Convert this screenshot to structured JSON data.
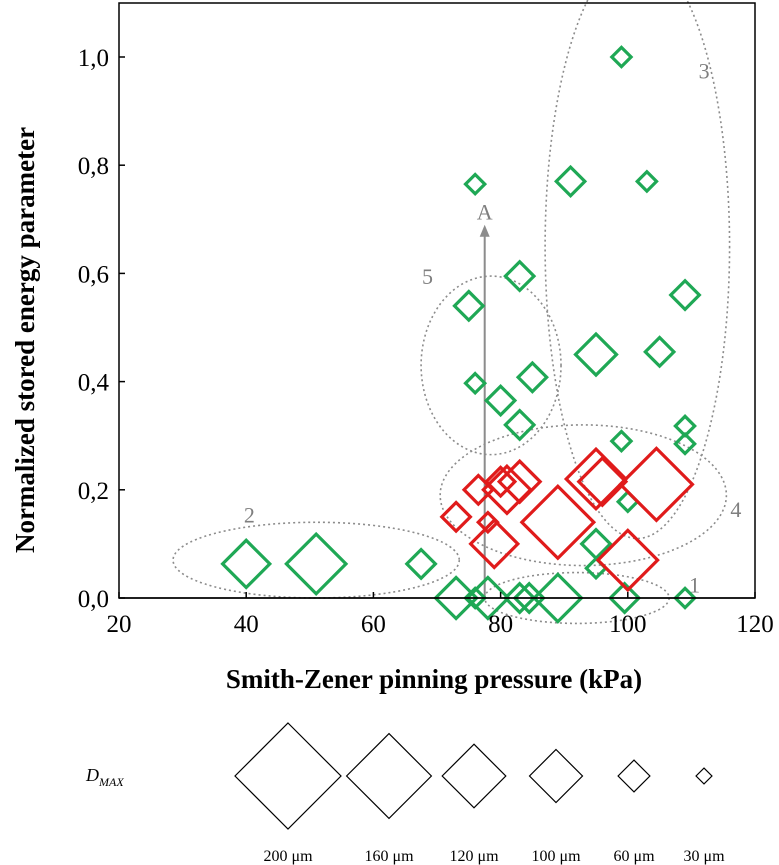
{
  "chart_data": {
    "type": "scatter",
    "xlabel": "Smith-Zener pinning pressure (kPa)",
    "ylabel": "Normalized stored energy parameter",
    "xlim": [
      20,
      120
    ],
    "ylim": [
      0,
      1.1
    ],
    "x_ticks": [
      20,
      40,
      60,
      80,
      100,
      120
    ],
    "x_tick_labels": [
      "20",
      "40",
      "60",
      "80",
      "100",
      "120"
    ],
    "y_ticks": [
      0,
      0.2,
      0.4,
      0.6,
      0.8,
      1.0
    ],
    "y_tick_labels": [
      "0,0",
      "0,2",
      "0,4",
      "0,6",
      "0,8",
      "1,0"
    ],
    "grid": false,
    "marker": "diamond",
    "marker_size_meaning": "D_MAX (μm)",
    "series": [
      {
        "color": "#1fa855",
        "points": [
          {
            "x": 99,
            "y": 1.0,
            "dmax": 30
          },
          {
            "x": 76,
            "y": 0.765,
            "dmax": 30
          },
          {
            "x": 91,
            "y": 0.77,
            "dmax": 60
          },
          {
            "x": 103,
            "y": 0.77,
            "dmax": 30
          },
          {
            "x": 83,
            "y": 0.595,
            "dmax": 60
          },
          {
            "x": 75,
            "y": 0.54,
            "dmax": 60
          },
          {
            "x": 109,
            "y": 0.56,
            "dmax": 60
          },
          {
            "x": 95,
            "y": 0.45,
            "dmax": 100
          },
          {
            "x": 105,
            "y": 0.455,
            "dmax": 60
          },
          {
            "x": 76,
            "y": 0.397,
            "dmax": 30
          },
          {
            "x": 85,
            "y": 0.408,
            "dmax": 60
          },
          {
            "x": 80,
            "y": 0.365,
            "dmax": 60
          },
          {
            "x": 83,
            "y": 0.32,
            "dmax": 60
          },
          {
            "x": 109,
            "y": 0.318,
            "dmax": 30
          },
          {
            "x": 99,
            "y": 0.29,
            "dmax": 30
          },
          {
            "x": 109,
            "y": 0.285,
            "dmax": 30
          },
          {
            "x": 100,
            "y": 0.178,
            "dmax": 30
          },
          {
            "x": 95,
            "y": 0.1,
            "dmax": 60
          },
          {
            "x": 95,
            "y": 0.055,
            "dmax": 30
          },
          {
            "x": 40,
            "y": 0.063,
            "dmax": 120
          },
          {
            "x": 51,
            "y": 0.063,
            "dmax": 160
          },
          {
            "x": 67.5,
            "y": 0.063,
            "dmax": 60
          },
          {
            "x": 73,
            "y": 0.0,
            "dmax": 100
          },
          {
            "x": 76,
            "y": 0.0,
            "dmax": 30
          },
          {
            "x": 78,
            "y": 0.0,
            "dmax": 100
          },
          {
            "x": 83,
            "y": 0.0,
            "dmax": 60
          },
          {
            "x": 84.5,
            "y": 0.0,
            "dmax": 60
          },
          {
            "x": 89,
            "y": 0.0,
            "dmax": 120
          },
          {
            "x": 99.5,
            "y": 0.0,
            "dmax": 60
          },
          {
            "x": 109,
            "y": 0.0,
            "dmax": 30
          }
        ]
      },
      {
        "color": "#e01b1b",
        "points": [
          {
            "x": 104.5,
            "y": 0.21,
            "dmax": 200
          },
          {
            "x": 96,
            "y": 0.215,
            "dmax": 120
          },
          {
            "x": 89,
            "y": 0.14,
            "dmax": 200
          },
          {
            "x": 95,
            "y": 0.22,
            "dmax": 160
          },
          {
            "x": 81,
            "y": 0.2,
            "dmax": 120
          },
          {
            "x": 83,
            "y": 0.215,
            "dmax": 100
          },
          {
            "x": 80,
            "y": 0.215,
            "dmax": 60
          },
          {
            "x": 76.5,
            "y": 0.2,
            "dmax": 60
          },
          {
            "x": 78,
            "y": 0.14,
            "dmax": 30
          },
          {
            "x": 73,
            "y": 0.15,
            "dmax": 60
          },
          {
            "x": 79,
            "y": 0.1,
            "dmax": 120
          },
          {
            "x": 100,
            "y": 0.07,
            "dmax": 160
          }
        ]
      }
    ],
    "regions": [
      {
        "label": "1",
        "cx": 92,
        "cy": 0.0,
        "rx": 14.5,
        "ry": 0.047,
        "label_x": 110.5,
        "label_y": 0.01
      },
      {
        "label": "2",
        "cx": 51,
        "cy": 0.07,
        "rx": 22.5,
        "ry": 0.07,
        "label_x": 40.5,
        "label_y": 0.14
      },
      {
        "label": "3",
        "cx": 101.5,
        "cy": 0.65,
        "rx": 14.5,
        "ry": 0.54,
        "label_x": 112,
        "label_y": 0.96
      },
      {
        "label": "4",
        "cx": 93,
        "cy": 0.19,
        "rx": 22.5,
        "ry": 0.13,
        "label_x": 117,
        "label_y": 0.15
      },
      {
        "label": "5",
        "cx": 78.5,
        "cy": 0.43,
        "rx": 11,
        "ry": 0.165,
        "label_x": 68.5,
        "label_y": 0.58
      }
    ],
    "annotation_arrow": {
      "label": "A",
      "x": 77.5,
      "y_from": 0.0,
      "y_to": 0.69
    },
    "legend": {
      "title_symbol": "D",
      "title_subscript": "MAX",
      "items": [
        {
          "dmax": 200,
          "label": "200 μm"
        },
        {
          "dmax": 160,
          "label": "160 μm"
        },
        {
          "dmax": 120,
          "label": "120 μm"
        },
        {
          "dmax": 100,
          "label": "100 μm"
        },
        {
          "dmax": 60,
          "label": "60 μm"
        },
        {
          "dmax": 30,
          "label": "30 μm"
        }
      ]
    }
  }
}
